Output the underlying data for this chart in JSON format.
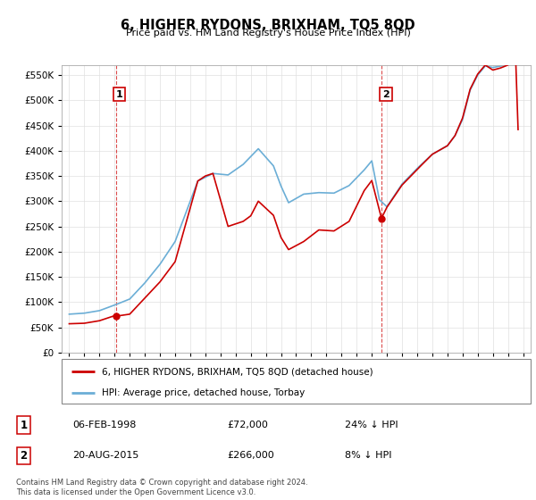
{
  "title": "6, HIGHER RYDONS, BRIXHAM, TQ5 8QD",
  "subtitle": "Price paid vs. HM Land Registry's House Price Index (HPI)",
  "legend_label1": "6, HIGHER RYDONS, BRIXHAM, TQ5 8QD (detached house)",
  "legend_label2": "HPI: Average price, detached house, Torbay",
  "annotation1_label": "1",
  "annotation1_date": "06-FEB-1998",
  "annotation1_price": "£72,000",
  "annotation1_hpi": "24% ↓ HPI",
  "annotation1_year": 1998.09,
  "annotation1_value": 72000,
  "annotation2_label": "2",
  "annotation2_date": "20-AUG-2015",
  "annotation2_price": "£266,000",
  "annotation2_hpi": "8% ↓ HPI",
  "annotation2_year": 2015.64,
  "annotation2_value": 266000,
  "footer": "Contains HM Land Registry data © Crown copyright and database right 2024.\nThis data is licensed under the Open Government Licence v3.0.",
  "hpi_color": "#6baed6",
  "price_color": "#cc0000",
  "ylim": [
    0,
    570000
  ],
  "yticks": [
    0,
    50000,
    100000,
    150000,
    200000,
    250000,
    300000,
    350000,
    400000,
    450000,
    500000,
    550000
  ]
}
